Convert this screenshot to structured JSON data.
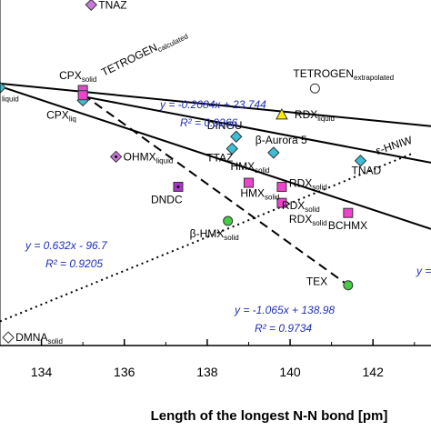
{
  "chart_data": {
    "type": "scatter",
    "xlabel": "Length of the longest N-N bond [pm]",
    "ylabel": "",
    "xlim": [
      133,
      143.4
    ],
    "ylim": [
      -10,
      76
    ],
    "x_ticks": [
      134,
      136,
      138,
      140,
      142
    ],
    "grid": false,
    "series": [
      {
        "id": "diamond-violet",
        "marker": "diamond",
        "color": "#cc77dd",
        "points": [
          {
            "x": 135.2,
            "y": 74.8,
            "label": "TNAZ",
            "sub": ""
          },
          {
            "x": 135.8,
            "y": 37.0,
            "label": "OHMX",
            "sub": "liquid"
          }
        ]
      },
      {
        "id": "diamond-cyan",
        "marker": "diamond",
        "color": "#3bbfd6",
        "points": [
          {
            "x": 133.0,
            "y": 54.2,
            "label": "",
            "sub": "liquid"
          },
          {
            "x": 135.0,
            "y": 51.0,
            "label": "CPX",
            "sub": "liq"
          },
          {
            "x": 138.7,
            "y": 42.0,
            "label": "DINGU",
            "sub": ""
          },
          {
            "x": 139.6,
            "y": 38.0,
            "label": "β-Aurora 5",
            "sub": ""
          },
          {
            "x": 141.7,
            "y": 36.0,
            "label": "TNAD",
            "sub": ""
          },
          {
            "x": 138.6,
            "y": 39.0,
            "label": "TTAZ",
            "sub": ""
          }
        ]
      },
      {
        "id": "square-magenta",
        "marker": "square",
        "color": "#ee44cc",
        "points": [
          {
            "x": 135.0,
            "y": 53.6,
            "label": "CPX",
            "sub": "solid"
          },
          {
            "x": 135.0,
            "y": 52.3,
            "label": "",
            "sub": ""
          },
          {
            "x": 139.0,
            "y": 30.5,
            "label": "HMX",
            "sub": "solid"
          },
          {
            "x": 139.8,
            "y": 29.5,
            "label": "RDX",
            "sub": "solid"
          },
          {
            "x": 139.8,
            "y": 25.5,
            "label": "RDX",
            "sub": "solid"
          },
          {
            "x": 141.4,
            "y": 23.0,
            "label": "BCHMX",
            "sub": ""
          }
        ]
      },
      {
        "id": "square-purple-dot",
        "marker": "square",
        "color": "#aa33cc",
        "points": [
          {
            "x": 137.3,
            "y": 29.5,
            "label": "DNDC",
            "sub": ""
          }
        ]
      },
      {
        "id": "circle-green",
        "marker": "circle",
        "color": "#44cc44",
        "points": [
          {
            "x": 138.5,
            "y": 21.0,
            "label": "β-HMX",
            "sub": "solid"
          },
          {
            "x": 141.4,
            "y": 5.0,
            "label": "TEX",
            "sub": ""
          }
        ]
      },
      {
        "id": "triangle-yellow",
        "marker": "triangle",
        "color": "#ffee00",
        "points": [
          {
            "x": 139.8,
            "y": 47.5,
            "label": "RDX",
            "sub": "liquid"
          }
        ]
      },
      {
        "id": "circle-open",
        "marker": "circle-open",
        "color": "#ffffff",
        "points": [
          {
            "x": 140.6,
            "y": 54.0,
            "label": "TETROGEN",
            "sub": "extrapolated"
          }
        ]
      },
      {
        "id": "diamond-open",
        "marker": "diamond-open",
        "color": "#ffffff",
        "points": [
          {
            "x": 133.2,
            "y": -8.0,
            "label": "DMNA",
            "sub": "solid"
          }
        ]
      }
    ],
    "extra_labels": [
      {
        "text": "TETROGEN",
        "sub": "calculated",
        "x": 135.5,
        "y": 57,
        "rotate": -26
      },
      {
        "text": "HMX",
        "sub": "solid",
        "x": 138.8,
        "y": 27,
        "rotate": 0
      },
      {
        "text": "RDX",
        "sub": "solid",
        "x": 139.8,
        "y": 24,
        "rotate": 0
      },
      {
        "text": "ε-HNIW",
        "sub": "",
        "x": 142.1,
        "y": 37.5,
        "rotate": -18
      }
    ],
    "fits": [
      {
        "style": "solid",
        "slope": -0.2084,
        "intercept": 23.744,
        "x_range": [
          133,
          143.4
        ],
        "scale": "upper"
      },
      {
        "style": "solid",
        "x_from": 133,
        "y_from": 54.5,
        "x_to": 143.4,
        "y_to": 19.0
      },
      {
        "style": "solid",
        "x_from": 135.0,
        "y_from": 52.0,
        "x_to": 143.4,
        "y_to": 35.5
      },
      {
        "style": "dashed",
        "x_from": 135.0,
        "y_from": 52.5,
        "x_to": 141.4,
        "y_to": 5.0
      },
      {
        "style": "dotted",
        "x_from": 133.0,
        "y_from": -4.0,
        "x_to": 143.0,
        "y_to": 38.0
      }
    ],
    "equations": [
      {
        "eq": "y = -0.2084x + 23.744",
        "r2": "R² = 0.9266",
        "anchor": "upper-right"
      },
      {
        "eq": "y = 0.632x - 96.7",
        "r2": "R² = 0.9205",
        "anchor": "left"
      },
      {
        "eq": "y = -1.065x + 138.98",
        "r2": "R² = 0.9734",
        "anchor": "bottom-middle"
      },
      {
        "eq": "y =",
        "r2": "",
        "anchor": "right-edge"
      }
    ]
  }
}
